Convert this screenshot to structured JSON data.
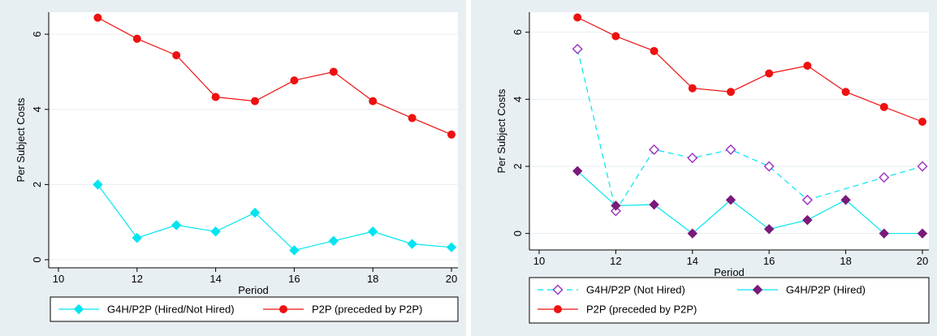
{
  "chart_data": [
    {
      "type": "line",
      "xlabel": "Period",
      "ylabel": "Per Subject Costs",
      "xlim": [
        10,
        20
      ],
      "ylim": [
        0,
        6.5
      ],
      "x_ticks": [
        "10",
        "12",
        "14",
        "16",
        "18",
        "20"
      ],
      "y_ticks": [
        "0",
        "2",
        "4",
        "6"
      ],
      "grid": true,
      "legend_position": "bottom",
      "series": [
        {
          "name": "G4H/P2P (Hired/Not Hired)",
          "color": "#00e5f0",
          "marker": "diamond-filled",
          "line": "solid",
          "x": [
            11,
            12,
            13,
            14,
            15,
            16,
            17,
            18,
            19,
            20
          ],
          "values": [
            2.0,
            0.58,
            0.92,
            0.75,
            1.25,
            0.25,
            0.5,
            0.75,
            0.42,
            0.33
          ]
        },
        {
          "name": "P2P (preceded by P2P)",
          "color": "#ee1111",
          "marker": "circle-filled",
          "line": "solid",
          "x": [
            11,
            12,
            13,
            14,
            15,
            16,
            17,
            18,
            19,
            20
          ],
          "values": [
            6.44,
            5.88,
            5.44,
            4.33,
            4.22,
            4.77,
            5.0,
            4.22,
            3.77,
            3.33
          ]
        }
      ]
    },
    {
      "type": "line",
      "xlabel": "Period",
      "ylabel": "Per Subject Costs",
      "xlim": [
        10,
        20
      ],
      "ylim": [
        -0.25,
        6.5
      ],
      "x_ticks": [
        "10",
        "12",
        "14",
        "16",
        "18",
        "20"
      ],
      "y_ticks": [
        "0",
        "2",
        "4",
        "6"
      ],
      "grid": true,
      "legend_position": "bottom",
      "series": [
        {
          "name": "G4H/P2P (Not Hired)",
          "color": "#00e5f0",
          "marker": "diamond-hollow",
          "marker_color": "#9b30c0",
          "line": "dashed",
          "x": [
            11,
            12,
            13,
            14,
            15,
            16,
            17,
            18,
            19,
            20
          ],
          "values": [
            5.5,
            0.67,
            2.5,
            2.25,
            2.5,
            2.0,
            1.0,
            null,
            1.67,
            2.0
          ]
        },
        {
          "name": "G4H/P2P (Hired)",
          "color": "#00e5f0",
          "marker": "diamond-filled",
          "marker_color": "#7a1a7a",
          "line": "solid",
          "x": [
            11,
            12,
            13,
            14,
            15,
            16,
            17,
            18,
            19,
            20
          ],
          "values": [
            1.86,
            0.83,
            0.86,
            0.0,
            1.0,
            0.13,
            0.4,
            1.0,
            0.0,
            0.0
          ]
        },
        {
          "name": "P2P (preceded by P2P)",
          "color": "#ee1111",
          "marker": "circle-filled",
          "line": "solid",
          "x": [
            11,
            12,
            13,
            14,
            15,
            16,
            17,
            18,
            19,
            20
          ],
          "values": [
            6.44,
            5.88,
            5.44,
            4.33,
            4.22,
            4.77,
            5.0,
            4.22,
            3.77,
            3.33
          ]
        }
      ]
    }
  ],
  "colors": {
    "outer_background": "#e8eff3",
    "plot_background": "#ffffff",
    "grid": "#e6eef2"
  }
}
